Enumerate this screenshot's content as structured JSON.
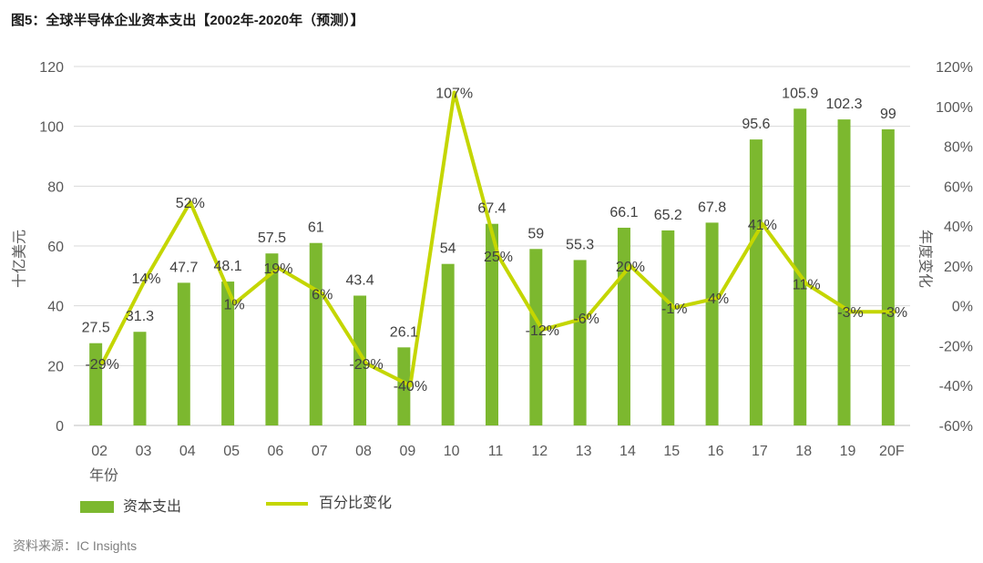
{
  "source": "资料来源：IC Insights",
  "chart_data": {
    "type": "bar",
    "title": "图5：全球半导体企业资本支出【2002年-2020年（预测）】",
    "categories": [
      "02",
      "03",
      "04",
      "05",
      "06",
      "07",
      "08",
      "09",
      "10",
      "11",
      "12",
      "13",
      "14",
      "15",
      "16",
      "17",
      "18",
      "19",
      "20F"
    ],
    "x_axis": {
      "label": "年份"
    },
    "y_axis": {
      "label": "十亿美元",
      "min": 0,
      "max": 120,
      "ticks": [
        0,
        20,
        40,
        60,
        80,
        100,
        120
      ]
    },
    "y2_axis": {
      "label": "年度变化",
      "min": -60,
      "max": 120,
      "ticks": [
        -60,
        -40,
        -20,
        0,
        20,
        40,
        60,
        80,
        100,
        120
      ],
      "unit": "%"
    },
    "series": [
      {
        "name": "资本支出",
        "type": "bar",
        "axis": "left",
        "color": "#7cb82f",
        "values": [
          27.5,
          31.3,
          47.7,
          48.1,
          57.5,
          61,
          43.4,
          26.1,
          54,
          67.4,
          59,
          55.3,
          66.1,
          65.2,
          67.8,
          95.6,
          105.9,
          102.3,
          99
        ]
      },
      {
        "name": "百分比变化",
        "type": "line",
        "axis": "right",
        "color": "#c4d600",
        "unit": "%",
        "values": [
          -29,
          14,
          52,
          1,
          19,
          6,
          -29,
          -40,
          107,
          25,
          -12,
          -6,
          20,
          -1,
          4,
          41,
          11,
          -3,
          -3
        ]
      }
    ],
    "data_labels": true,
    "grid": "horizontal",
    "legend": "bottom-left"
  }
}
